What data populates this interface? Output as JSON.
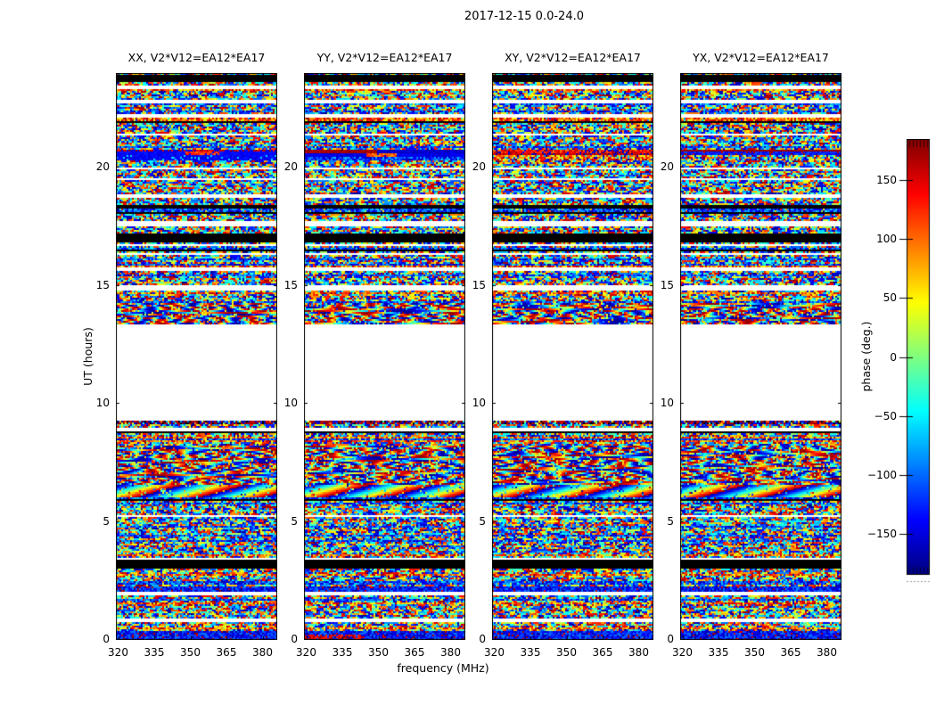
{
  "figure": {
    "background": "#ffffff"
  },
  "chart_data": {
    "type": "heatmap",
    "title": "2017-12-15 0.0-24.0",
    "xlabel": "frequency (MHz)",
    "ylabel": "UT (hours)",
    "x_ticks": [
      320,
      335,
      350,
      365,
      380
    ],
    "y_ticks": [
      0,
      5,
      10,
      15,
      20
    ],
    "x_range_mhz": [
      319,
      385.5
    ],
    "y_range_hours": [
      0,
      24
    ],
    "grid": false,
    "panels": [
      {
        "id": "XX",
        "title": "XX, V2*V12=EA12*EA17"
      },
      {
        "id": "YY",
        "title": "YY, V2*V12=EA12*EA17"
      },
      {
        "id": "XY",
        "title": "XY, V2*V12=EA12*EA17"
      },
      {
        "id": "YX",
        "title": "YX, V2*V12=EA12*EA17"
      }
    ],
    "colorbar": {
      "label": "phase (deg.)",
      "ticks": [
        150,
        100,
        50,
        0,
        -50,
        -100,
        -150
      ],
      "range": [
        -185,
        185
      ],
      "colormap": "jet",
      "position": "right"
    },
    "values": "uniform random interferometric phase noise in [-180,180] deg across 319-385 MHz, 0-24 UT hours",
    "no_data_gap_hours": [
      9.32,
      13.36
    ],
    "bands": [
      {
        "h0": 23.62,
        "h1": 23.85,
        "type": "black"
      },
      {
        "h0": 23.35,
        "h1": 23.47,
        "type": "white"
      },
      {
        "h0": 22.75,
        "h1": 22.87,
        "type": "white"
      },
      {
        "h0": 22.15,
        "h1": 22.27,
        "type": "white"
      },
      {
        "h0": 21.85,
        "h1": 21.97,
        "type": "black"
      },
      {
        "h0": 21.35,
        "h1": 21.47,
        "type": "white"
      },
      {
        "h0": 20.3,
        "h1": 20.78,
        "type": "streak"
      },
      {
        "h0": 19.93,
        "h1": 20.02,
        "type": "white"
      },
      {
        "h0": 19.45,
        "h1": 19.56,
        "type": "white"
      },
      {
        "h0": 18.75,
        "h1": 18.86,
        "type": "white"
      },
      {
        "h0": 18.25,
        "h1": 18.42,
        "type": "black"
      },
      {
        "h0": 17.5,
        "h1": 17.76,
        "type": "white"
      },
      {
        "h0": 16.85,
        "h1": 17.2,
        "type": "black"
      },
      {
        "h0": 15.65,
        "h1": 15.76,
        "type": "white"
      },
      {
        "h0": 14.9,
        "h1": 15.0,
        "type": "white"
      },
      {
        "h0": 13.36,
        "h1": 14.25,
        "type": "wave"
      },
      {
        "h0": 9.32,
        "h1": 13.36,
        "type": "gap"
      },
      {
        "h0": 9.15,
        "h1": 9.32,
        "type": "streak2"
      },
      {
        "h0": 8.85,
        "h1": 8.96,
        "type": "white"
      },
      {
        "h0": 6.6,
        "h1": 8.2,
        "type": "wave"
      },
      {
        "h0": 6.05,
        "h1": 6.55,
        "type": "wave2"
      },
      {
        "h0": 5.2,
        "h1": 5.31,
        "type": "white"
      },
      {
        "h0": 3.38,
        "h1": 3.5,
        "type": "white"
      },
      {
        "h0": 3.02,
        "h1": 3.38,
        "type": "black"
      },
      {
        "h0": 2.02,
        "h1": 2.28,
        "type": "blue"
      },
      {
        "h0": 1.9,
        "h1": 2.02,
        "type": "white"
      },
      {
        "h0": 0.76,
        "h1": 0.87,
        "type": "white"
      },
      {
        "h0": 0.0,
        "h1": 0.4,
        "type": "blue"
      }
    ]
  }
}
